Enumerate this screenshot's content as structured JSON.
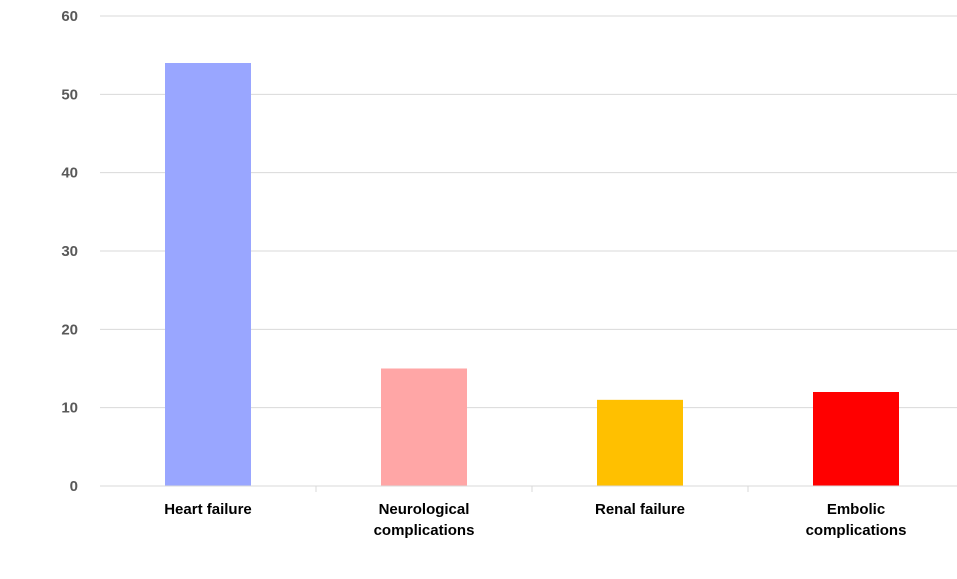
{
  "chart_data": {
    "type": "bar",
    "title": "",
    "xlabel": "",
    "ylabel": "",
    "categories": [
      "Heart failure",
      "Neurological complications",
      "Renal failure",
      "Embolic complications"
    ],
    "category_lines": [
      [
        "Heart failure"
      ],
      [
        "Neurological",
        "complications"
      ],
      [
        "Renal failure"
      ],
      [
        "Embolic",
        "complications"
      ]
    ],
    "values": [
      54,
      15,
      11,
      12
    ],
    "colors": [
      "#99a6ff",
      "#ffa6a6",
      "#ffc000",
      "#ff0000"
    ],
    "ylim": [
      0,
      60
    ],
    "yticks": [
      0,
      10,
      20,
      30,
      40,
      50,
      60
    ],
    "grid": true,
    "legend": "none"
  }
}
